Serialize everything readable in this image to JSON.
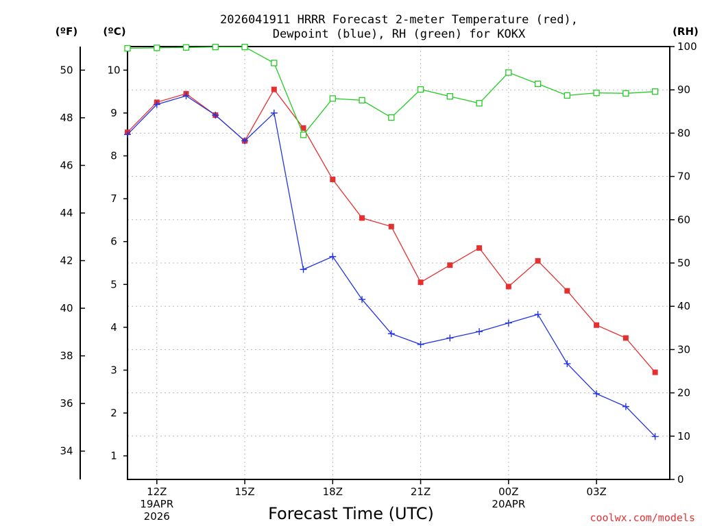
{
  "chart_data": {
    "type": "line",
    "title_lines": [
      "2026041911 HRRR Forecast 2-meter Temperature (red),",
      "Dewpoint (blue), RH (green) for KOKX"
    ],
    "unit_labels": {
      "fahrenheit": "(ºF)",
      "celsius": "(ºC)",
      "rh": "(RH)"
    },
    "xlabel": "Forecast Time (UTC)",
    "credit": "coolwx.com/models",
    "x_hours": [
      11,
      12,
      13,
      14,
      15,
      16,
      17,
      18,
      19,
      20,
      21,
      22,
      23,
      24,
      25,
      26,
      27,
      28,
      29
    ],
    "xlim": [
      11,
      29.5
    ],
    "x_ticks": [
      {
        "hour": 12,
        "label": "12Z",
        "sub": [
          "19APR",
          "2026"
        ]
      },
      {
        "hour": 15,
        "label": "15Z",
        "sub": []
      },
      {
        "hour": 18,
        "label": "18Z",
        "sub": []
      },
      {
        "hour": 21,
        "label": "21Z",
        "sub": []
      },
      {
        "hour": 24,
        "label": "00Z",
        "sub": [
          "20APR"
        ]
      },
      {
        "hour": 27,
        "label": "03Z",
        "sub": []
      }
    ],
    "celsius_axis": {
      "range": [
        0.45,
        10.55
      ],
      "ticks": [
        1,
        2,
        3,
        4,
        5,
        6,
        7,
        8,
        9,
        10
      ]
    },
    "fahrenheit_axis": {
      "ticks": [
        34,
        36,
        38,
        40,
        42,
        44,
        46,
        48,
        50
      ]
    },
    "rh_axis": {
      "range": [
        0,
        100
      ],
      "ticks": [
        0,
        10,
        20,
        30,
        40,
        50,
        60,
        70,
        80,
        90,
        100
      ]
    },
    "series": [
      {
        "name": "Temperature",
        "axis": "celsius",
        "color": "#e53030",
        "marker": "filled-square",
        "values": [
          8.55,
          9.25,
          9.45,
          8.95,
          8.35,
          9.55,
          8.65,
          7.45,
          6.55,
          6.35,
          5.05,
          5.45,
          5.85,
          4.95,
          5.55,
          4.85,
          4.05,
          3.75,
          2.95
        ]
      },
      {
        "name": "Dewpoint",
        "axis": "celsius",
        "color": "#2233e0",
        "marker": "plus",
        "values": [
          8.5,
          9.2,
          9.4,
          8.95,
          8.35,
          9.0,
          5.35,
          5.65,
          4.65,
          3.85,
          3.6,
          3.75,
          3.9,
          4.1,
          4.3,
          3.15,
          2.45,
          2.15,
          1.45
        ]
      },
      {
        "name": "RH",
        "axis": "rh",
        "color": "#22cc22",
        "marker": "open-square",
        "values": [
          99.6,
          99.7,
          99.8,
          99.9,
          99.9,
          96.2,
          79.6,
          88.0,
          87.6,
          83.6,
          90.1,
          88.5,
          86.9,
          94.0,
          91.4,
          88.7,
          89.3,
          89.2,
          89.6
        ]
      }
    ]
  }
}
